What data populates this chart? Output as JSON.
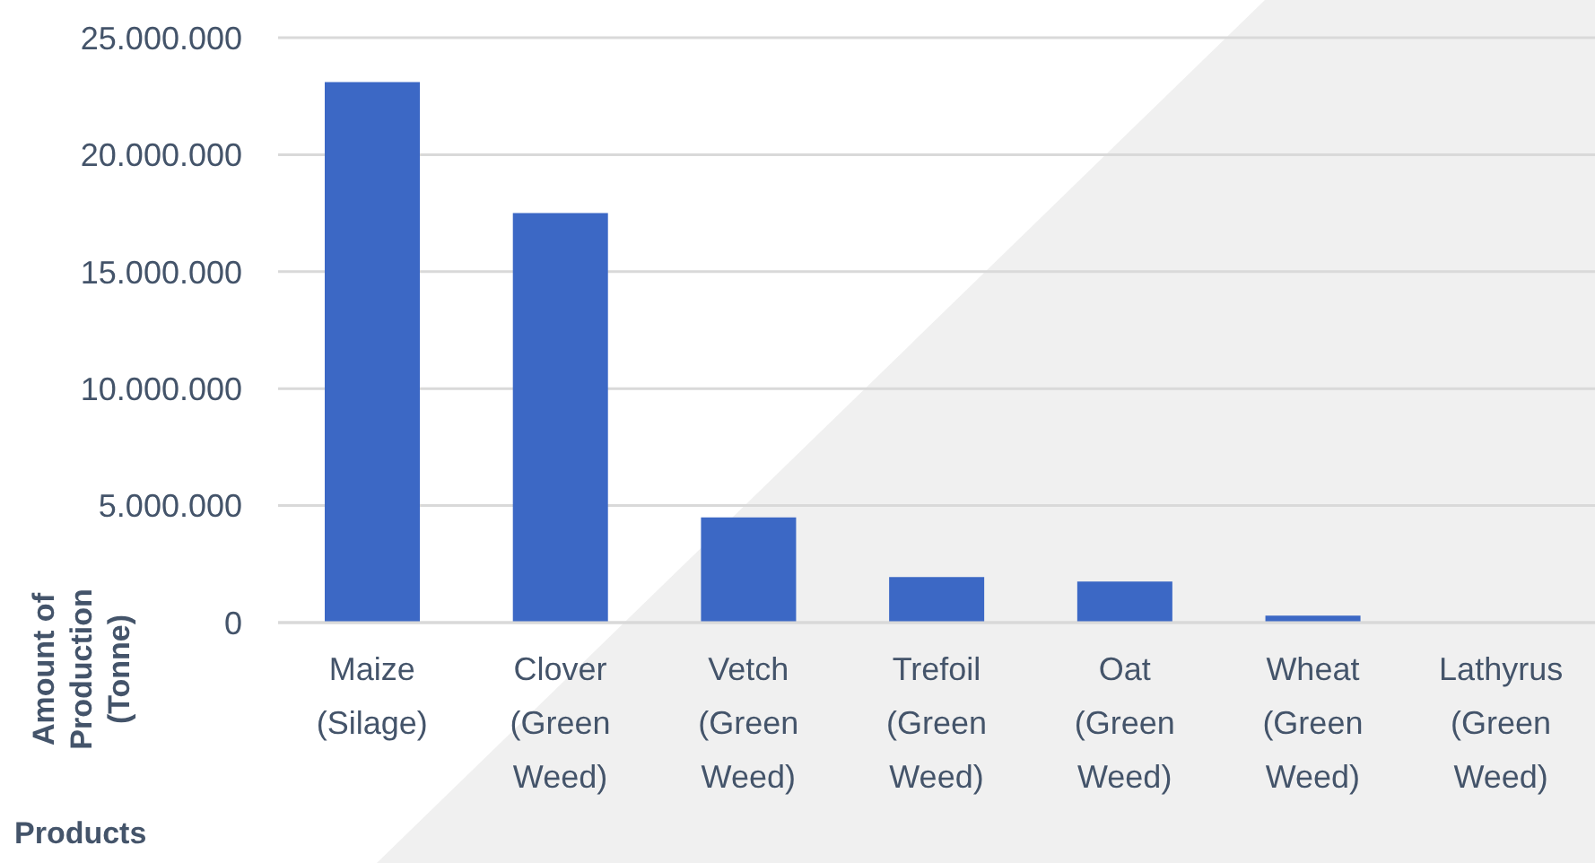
{
  "chart_data": {
    "type": "bar",
    "xlabel": "Products",
    "ylabel": "Amount of Production (Tonne)",
    "categories": [
      "Maize (Silage)",
      "Clover (Green Weed)",
      "Vetch (Green Weed)",
      "Trefoil (Green Weed)",
      "Oat (Green Weed)",
      "Wheat (Green Weed)",
      "Lathyrus (Green Weed)"
    ],
    "values": [
      23100000,
      17500000,
      4500000,
      1950000,
      1750000,
      300000,
      0
    ],
    "color": "#3c68c5",
    "ylim": [
      0,
      25000000
    ],
    "yticks": [
      0,
      {
        "value": 5000000,
        "label": "5.000.000"
      },
      {
        "value": 10000000,
        "label": "10.000.000"
      },
      {
        "value": 15000000,
        "label": "15.000.000"
      },
      {
        "value": 20000000,
        "label": "20.000.000"
      },
      {
        "value": 25000000,
        "label": "25.000.000"
      }
    ],
    "grid": "y"
  }
}
